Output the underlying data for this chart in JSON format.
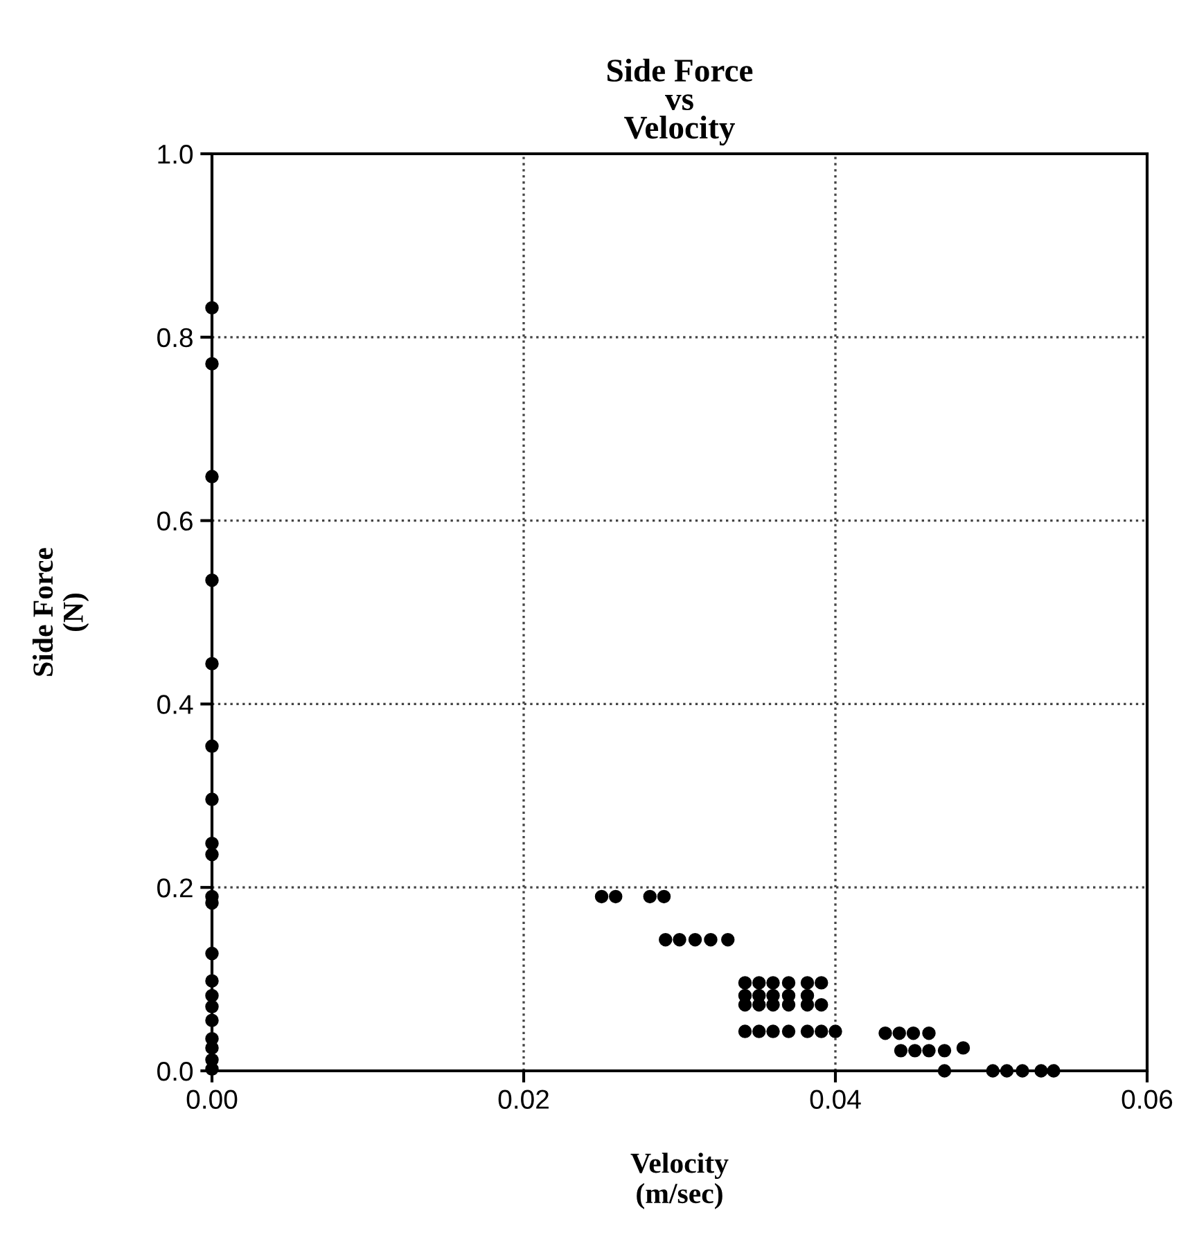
{
  "chart_data": {
    "type": "scatter",
    "title": "Side Force\nvs\nVelocity",
    "xlabel": "Velocity\n(m/sec)",
    "ylabel": "Side Force\n(N)",
    "series": [
      {
        "color": "#000000",
        "x": [
          0,
          0,
          0,
          0,
          0,
          0,
          0,
          0,
          0,
          0,
          0,
          0,
          0,
          0,
          0,
          0,
          0,
          0,
          0,
          0,
          0.025,
          0.0259,
          0.0281,
          0.029,
          0.0291,
          0.03,
          0.031,
          0.032,
          0.0331,
          0.0342,
          0.0351,
          0.036,
          0.037,
          0.0382,
          0.0391,
          0.0342,
          0.0351,
          0.036,
          0.037,
          0.0382,
          0.0342,
          0.0351,
          0.036,
          0.037,
          0.0382,
          0.0391,
          0.0342,
          0.0351,
          0.036,
          0.037,
          0.0382,
          0.0391,
          0.04,
          0.0432,
          0.0441,
          0.045,
          0.046,
          0.0442,
          0.0451,
          0.046,
          0.047,
          0.0482,
          0.047,
          0.0501,
          0.051,
          0.052,
          0.0532,
          0.054
        ],
        "values": [
          0.832,
          0.771,
          0.648,
          0.535,
          0.444,
          0.354,
          0.296,
          0.248,
          0.236,
          0.19,
          0.183,
          0.128,
          0.098,
          0.082,
          0.07,
          0.055,
          0.035,
          0.025,
          0.012,
          0.002,
          0.19,
          0.19,
          0.19,
          0.19,
          0.143,
          0.143,
          0.143,
          0.143,
          0.143,
          0.096,
          0.096,
          0.096,
          0.096,
          0.096,
          0.096,
          0.082,
          0.082,
          0.082,
          0.082,
          0.082,
          0.072,
          0.072,
          0.072,
          0.072,
          0.072,
          0.072,
          0.043,
          0.043,
          0.043,
          0.043,
          0.043,
          0.043,
          0.043,
          0.041,
          0.041,
          0.041,
          0.041,
          0.022,
          0.022,
          0.022,
          0.022,
          0.025,
          0.0,
          0.0,
          0.0,
          0.0,
          0.0,
          0.0
        ]
      }
    ],
    "xlim": [
      0,
      0.06
    ],
    "xticks": [
      {
        "value": 0,
        "label": "0.00"
      },
      {
        "value": 0.02,
        "label": "0.02"
      },
      {
        "value": 0.04,
        "label": "0.04"
      },
      {
        "value": 0.06,
        "label": "0.06"
      }
    ],
    "ylim": [
      0,
      1.0
    ],
    "yticks": [
      {
        "value": 0,
        "label": "0.0"
      },
      {
        "value": 0.2,
        "label": "0.2"
      },
      {
        "value": 0.4,
        "label": "0.4"
      },
      {
        "value": 0.6,
        "label": "0.6"
      },
      {
        "value": 0.8,
        "label": "0.8"
      },
      {
        "value": 1.0,
        "label": "1.0"
      }
    ],
    "grid": true,
    "marker": "circle",
    "legend": false
  }
}
